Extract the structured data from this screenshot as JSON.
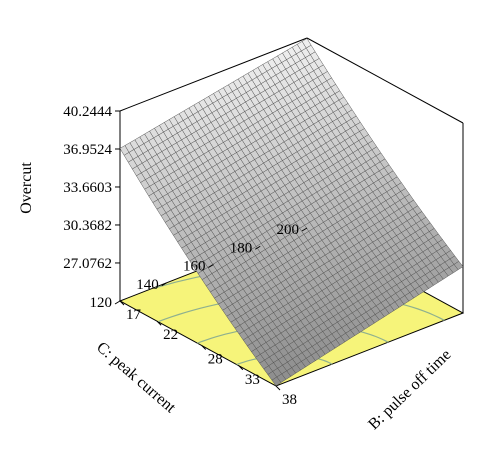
{
  "chart_data": {
    "type": "surface3d",
    "title": "",
    "zlabel": "Overcut",
    "xlabel": "B: pulse off time",
    "ylabel": "C: peak current",
    "z_ticks": [
      "40.2444",
      "36.9524",
      "33.6603",
      "30.3682",
      "27.0762"
    ],
    "x_ticks": [
      "17",
      "22",
      "28",
      "33",
      "38"
    ],
    "y_ticks": [
      "120",
      "140",
      "160",
      "180",
      "200"
    ],
    "xlim": [
      17,
      38
    ],
    "ylim": [
      120,
      200
    ],
    "zlim": [
      23.78,
      40.2444
    ],
    "surface": {
      "corners": [
        {
          "b": 17,
          "c": 200,
          "overcut": 40.2
        },
        {
          "b": 38,
          "c": 200,
          "overcut": 27.8
        },
        {
          "b": 38,
          "c": 120,
          "overcut": 23.8
        },
        {
          "b": 17,
          "c": 120,
          "overcut": 37.0
        }
      ]
    },
    "floor_color": "#f6f47a",
    "contour_color": "#8fb08f",
    "mesh_color": "#555555",
    "contour_count": 4
  }
}
